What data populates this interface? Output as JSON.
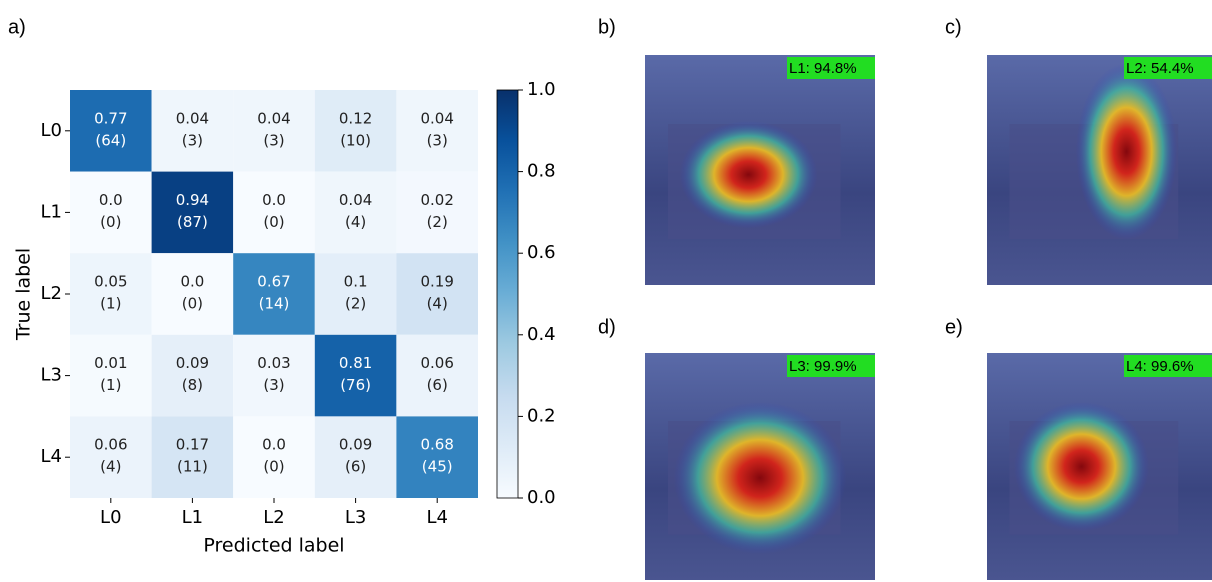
{
  "panels": [
    "a)",
    "b)",
    "c)",
    "d)",
    "e)"
  ],
  "chart_data": {
    "type": "heatmap",
    "colormap": "Blues",
    "xlabel": "Predicted label",
    "ylabel": "True label",
    "x_categories": [
      "L0",
      "L1",
      "L2",
      "L3",
      "L4"
    ],
    "y_categories": [
      "L0",
      "L1",
      "L2",
      "L3",
      "L4"
    ],
    "values": [
      [
        0.77,
        0.04,
        0.04,
        0.12,
        0.04
      ],
      [
        0,
        0.94,
        0,
        0.04,
        0.02
      ],
      [
        0.05,
        0,
        0.67,
        0.1,
        0.19
      ],
      [
        0.01,
        0.09,
        0.03,
        0.81,
        0.06
      ],
      [
        0.06,
        0.17,
        0,
        0.09,
        0.68
      ]
    ],
    "value_labels": [
      [
        "0.77",
        "0.04",
        "0.04",
        "0.12",
        "0.04"
      ],
      [
        "0.0",
        "0.94",
        "0.0",
        "0.04",
        "0.02"
      ],
      [
        "0.05",
        "0.0",
        "0.67",
        "0.1",
        "0.19"
      ],
      [
        "0.01",
        "0.09",
        "0.03",
        "0.81",
        "0.06"
      ],
      [
        "0.06",
        "0.17",
        "0.0",
        "0.09",
        "0.68"
      ]
    ],
    "count_labels": [
      [
        "(64)",
        "(3)",
        "(3)",
        "(10)",
        "(3)"
      ],
      [
        "(0)",
        "(87)",
        "(0)",
        "(4)",
        "(2)"
      ],
      [
        "(1)",
        "(0)",
        "(14)",
        "(2)",
        "(4)"
      ],
      [
        "(1)",
        "(8)",
        "(3)",
        "(76)",
        "(6)"
      ],
      [
        "(4)",
        "(11)",
        "(0)",
        "(6)",
        "(45)"
      ]
    ],
    "clim": [
      0,
      1
    ],
    "cticks": [
      {
        "value": 0,
        "label": "0.0"
      },
      0.2,
      0.4,
      0.6,
      0.8,
      {
        "value": 1,
        "label": "1.0"
      }
    ]
  },
  "images": [
    "L1: 94.8%",
    "L2: 54.4%",
    "L3: 99.9%",
    "L4: 99.6%"
  ]
}
